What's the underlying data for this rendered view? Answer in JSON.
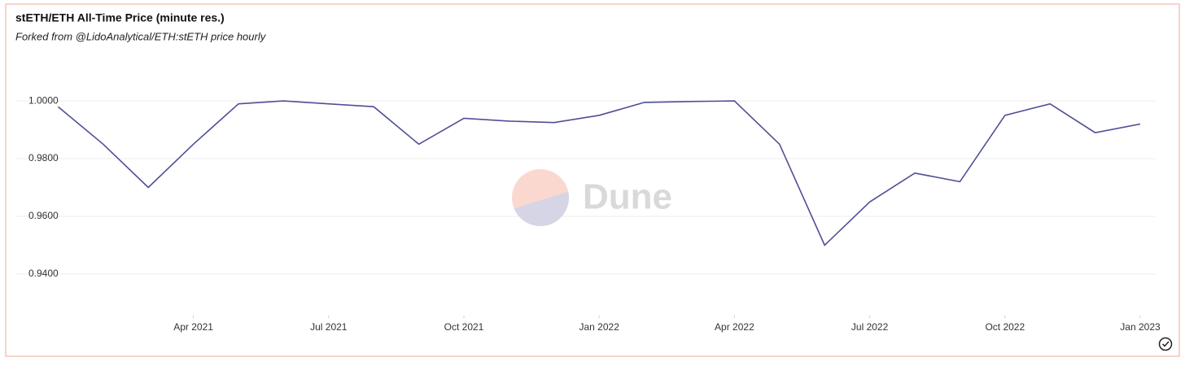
{
  "chart_data": {
    "type": "line",
    "title": "stETH/ETH All-Time Price (minute res.)",
    "subtitle": "Forked from @LidoAnalytical/ETH:stETH price hourly",
    "watermark": "Dune",
    "x": [
      "2021-01",
      "2021-02",
      "2021-03",
      "2021-04",
      "2021-05",
      "2021-06",
      "2021-07",
      "2021-08",
      "2021-09",
      "2021-10",
      "2021-11",
      "2021-12",
      "2022-01",
      "2022-02",
      "2022-03",
      "2022-04",
      "2022-05",
      "2022-06",
      "2022-07",
      "2022-08",
      "2022-09",
      "2022-10",
      "2022-11",
      "2022-12",
      "2023-01"
    ],
    "series": [
      {
        "color": "#4f4f96",
        "values": [
          0.998,
          0.985,
          0.97,
          0.985,
          0.999,
          1.0,
          0.999,
          0.998,
          0.985,
          0.994,
          0.993,
          0.9925,
          0.995,
          0.9995,
          0.9998,
          1.0,
          0.985,
          0.95,
          0.965,
          0.975,
          0.972,
          0.995,
          0.999,
          0.989,
          0.992
        ]
      }
    ],
    "xlim": [
      "2020-12",
      "2023-01"
    ],
    "xticks": [
      {
        "value": "2021-04",
        "label": "Apr 2021"
      },
      {
        "value": "2021-07",
        "label": "Jul 2021"
      },
      {
        "value": "2021-10",
        "label": "Oct 2021"
      },
      {
        "value": "2022-01",
        "label": "Jan 2022"
      },
      {
        "value": "2022-04",
        "label": "Apr 2022"
      },
      {
        "value": "2022-07",
        "label": "Jul 2022"
      },
      {
        "value": "2022-10",
        "label": "Oct 2022"
      },
      {
        "value": "2023-01",
        "label": "Jan 2023"
      }
    ],
    "ylim": [
      0.9256,
      1.013
    ],
    "yticks": [
      {
        "value": 0.94,
        "label": "0.9400"
      },
      {
        "value": 0.96,
        "label": "0.9600"
      },
      {
        "value": 0.98,
        "label": "0.9800"
      },
      {
        "value": 1,
        "label": "1.0000"
      }
    ],
    "grid": true
  }
}
